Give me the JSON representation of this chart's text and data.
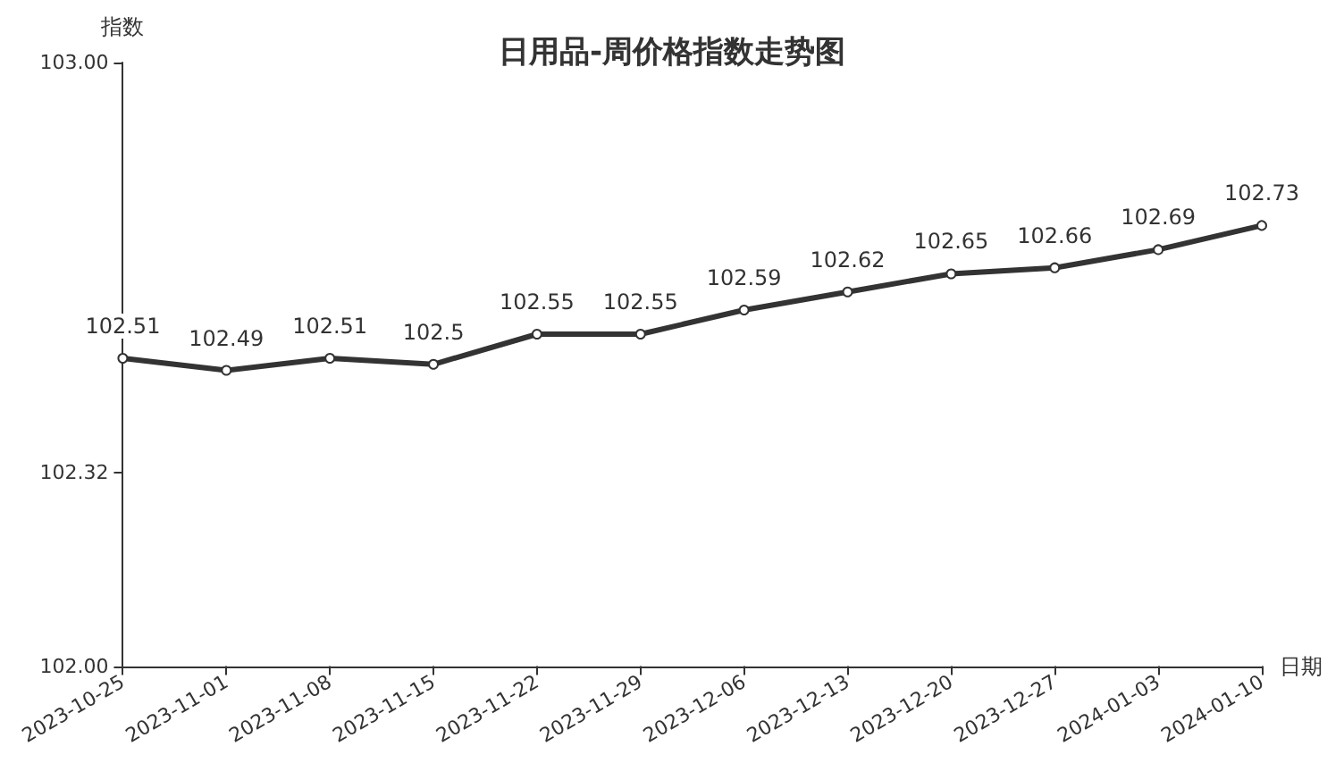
{
  "chart_data": {
    "type": "line",
    "title": "日用品-周价格指数走势图",
    "xlabel": "日期",
    "ylabel": "指数",
    "categories": [
      "2023-10-25",
      "2023-11-01",
      "2023-11-08",
      "2023-11-15",
      "2023-11-22",
      "2023-11-29",
      "2023-12-06",
      "2023-12-13",
      "2023-12-20",
      "2023-12-27",
      "2024-01-03",
      "2024-01-10"
    ],
    "series": [
      {
        "color": "#333333",
        "values": [
          102.51,
          102.49,
          102.51,
          102.5,
          102.55,
          102.55,
          102.59,
          102.62,
          102.65,
          102.66,
          102.69,
          102.73
        ]
      }
    ],
    "ylim": [
      102,
      103
    ],
    "yticks": [
      {
        "value": 102,
        "label": "102.00"
      },
      {
        "value": 102.32,
        "label": "102.32"
      },
      {
        "value": 103,
        "label": "103.00"
      }
    ],
    "grid": false,
    "marker": "circle",
    "line_style": "solid",
    "data_labels": true
  }
}
